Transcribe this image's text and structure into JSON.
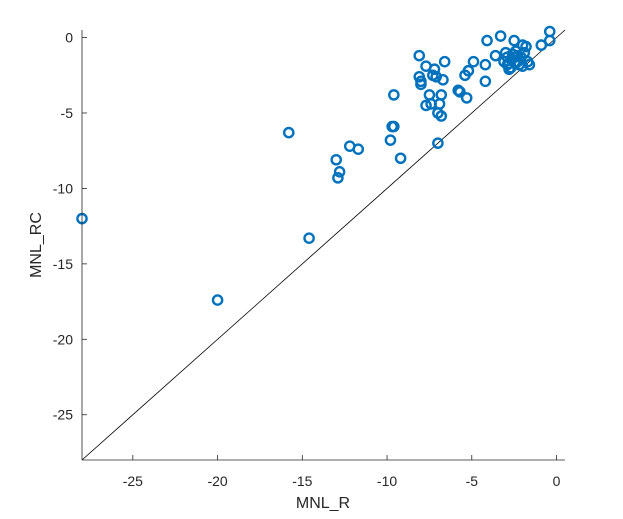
{
  "chart_data": {
    "type": "scatter",
    "xlabel": "MNL_R",
    "ylabel": "MNL_RC",
    "xlim": [
      -28,
      0.5
    ],
    "ylim": [
      -28,
      0.5
    ],
    "x_ticks": [
      -25,
      -20,
      -15,
      -10,
      -5,
      0
    ],
    "y_ticks": [
      0,
      -5,
      -10,
      -15,
      -20,
      -25
    ],
    "x_tick_labels": [
      "-25",
      "-20",
      "-15",
      "-10",
      "-5",
      "0"
    ],
    "y_tick_labels": [
      "0",
      "-5",
      "-10",
      "-15",
      "-20",
      "-25"
    ],
    "grid": false,
    "reference_line": "y = x",
    "marker_color": "#0072BD",
    "line_color": "#000000",
    "series": [
      {
        "x": [
          -28.0,
          -20.0,
          -15.8,
          -14.6,
          -13.0,
          -12.9,
          -12.8,
          -12.2,
          -11.7,
          -9.8,
          -9.7,
          -9.6,
          -9.6,
          -9.2,
          -8.1,
          -8.1,
          -8.0,
          -8.0,
          -7.7,
          -7.7,
          -7.5,
          -7.4,
          -7.3,
          -7.2,
          -7.1,
          -7.0,
          -7.0,
          -6.9,
          -6.8,
          -6.8,
          -6.7,
          -6.6,
          -5.8,
          -5.7,
          -5.4,
          -5.3,
          -5.2,
          -4.9,
          -4.2,
          -4.2,
          -4.1,
          -3.6,
          -3.3,
          -3.1,
          -3.0,
          -2.9,
          -2.9,
          -2.8,
          -2.8,
          -2.7,
          -2.6,
          -2.5,
          -2.5,
          -2.4,
          -2.3,
          -2.3,
          -2.2,
          -2.1,
          -2.0,
          -2.0,
          -1.9,
          -1.8,
          -1.7,
          -1.6,
          -0.9,
          -0.4,
          -0.4
        ],
        "y": [
          -12.0,
          -17.4,
          -6.3,
          -13.3,
          -8.1,
          -9.3,
          -8.9,
          -7.2,
          -7.4,
          -6.8,
          -5.9,
          -5.9,
          -3.8,
          -8.0,
          -1.2,
          -2.6,
          -3.1,
          -2.9,
          -4.5,
          -1.9,
          -3.8,
          -4.4,
          -2.5,
          -2.1,
          -2.6,
          -5.0,
          -7.0,
          -4.4,
          -3.8,
          -5.2,
          -2.8,
          -1.6,
          -3.5,
          -3.6,
          -2.5,
          -4.0,
          -2.2,
          -1.6,
          -1.8,
          -2.9,
          -0.2,
          -1.2,
          0.1,
          -1.6,
          -1.0,
          -1.3,
          -1.8,
          -1.7,
          -2.1,
          -2.0,
          -1.1,
          -1.3,
          -0.2,
          -0.9,
          -1.2,
          -1.6,
          -1.8,
          -1.3,
          -0.5,
          -1.9,
          -1.0,
          -0.6,
          -1.6,
          -1.8,
          -0.5,
          -0.2,
          0.4
        ]
      }
    ]
  }
}
